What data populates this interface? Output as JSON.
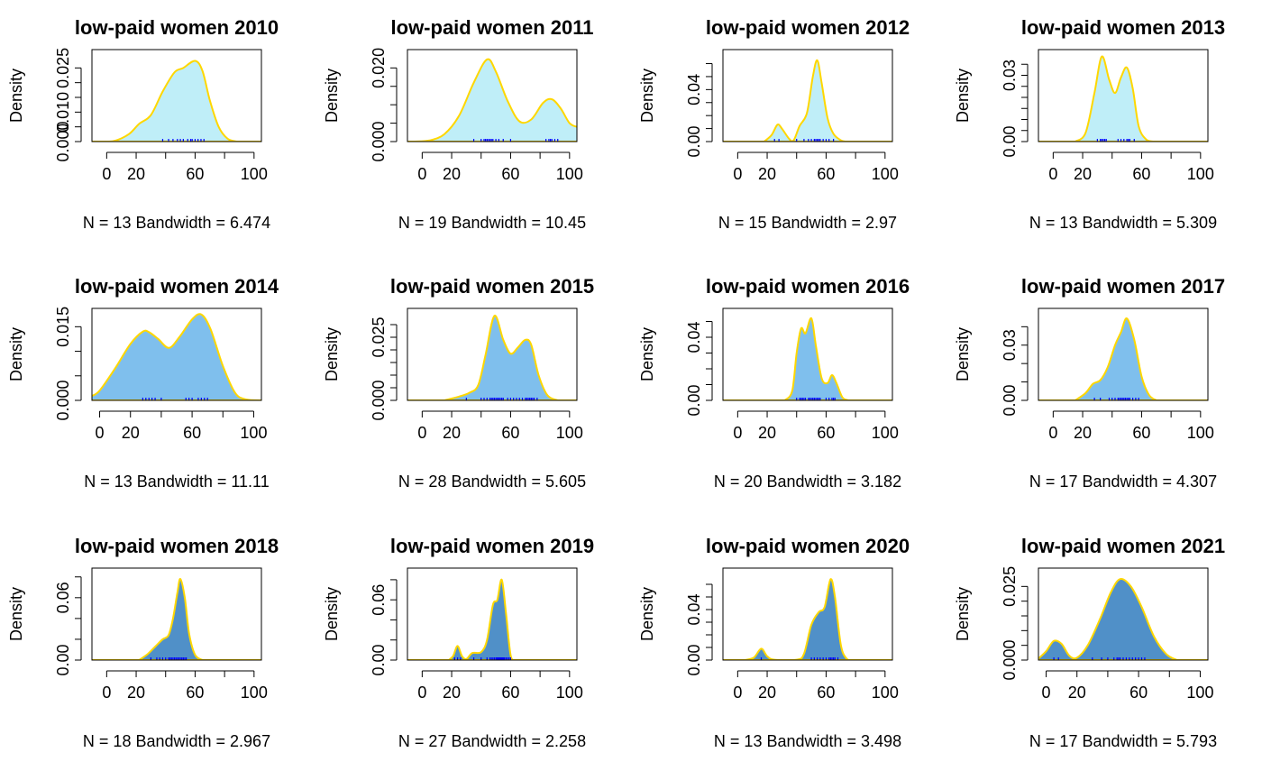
{
  "chart_data": [
    {
      "type": "density",
      "title": "low-paid women  2010",
      "ylabel": "Density",
      "xlabel": "N = 13   Bandwidth = 6.474",
      "fill": "#bfeef8",
      "xlim": [
        -10,
        105
      ],
      "ylim": [
        0,
        0.03
      ],
      "xticks": [
        0,
        20,
        60,
        100
      ],
      "yticks": [
        0,
        0.005,
        0.01,
        0.015,
        0.02,
        0.025
      ],
      "ytick_labels": [
        "0.000",
        "",
        "0.010",
        "",
        "",
        "0.025"
      ],
      "curve": [
        [
          -5,
          0
        ],
        [
          5,
          0.0002
        ],
        [
          15,
          0.0025
        ],
        [
          22,
          0.006
        ],
        [
          30,
          0.009
        ],
        [
          38,
          0.017
        ],
        [
          46,
          0.0235
        ],
        [
          52,
          0.025
        ],
        [
          60,
          0.0274
        ],
        [
          65,
          0.024
        ],
        [
          70,
          0.014
        ],
        [
          76,
          0.005
        ],
        [
          82,
          0.001
        ],
        [
          88,
          0
        ]
      ],
      "rug": [
        38,
        42,
        45,
        48,
        50,
        52,
        55,
        57,
        58,
        60,
        62,
        64,
        66
      ]
    },
    {
      "type": "density",
      "title": "low-paid women  2011",
      "ylabel": "Density",
      "xlabel": "N = 19   Bandwidth = 10.45",
      "fill": "#bfeef8",
      "xlim": [
        -10,
        105
      ],
      "ylim": [
        0,
        0.024
      ],
      "xticks": [
        0,
        20,
        60,
        100
      ],
      "yticks": [
        0,
        0.005,
        0.01,
        0.015,
        0.02
      ],
      "ytick_labels": [
        "0.000",
        "",
        "",
        "",
        "0.020"
      ],
      "curve": [
        [
          -5,
          0
        ],
        [
          5,
          0.0003
        ],
        [
          15,
          0.002
        ],
        [
          25,
          0.007
        ],
        [
          35,
          0.016
        ],
        [
          44,
          0.0223
        ],
        [
          50,
          0.019
        ],
        [
          58,
          0.011
        ],
        [
          66,
          0.0055
        ],
        [
          74,
          0.006
        ],
        [
          82,
          0.0105
        ],
        [
          88,
          0.0115
        ],
        [
          94,
          0.009
        ],
        [
          100,
          0.005
        ],
        [
          105,
          0.004
        ]
      ],
      "rug": [
        35,
        40,
        42,
        43,
        44,
        45,
        46,
        47,
        48,
        50,
        52,
        55,
        60,
        84,
        86,
        87,
        88,
        90,
        92
      ]
    },
    {
      "type": "density",
      "title": "low-paid women  2012",
      "ylabel": "Density",
      "xlabel": "N = 15   Bandwidth = 2.97",
      "fill": "#bfeef8",
      "xlim": [
        -10,
        105
      ],
      "ylim": [
        0,
        0.068
      ],
      "xticks": [
        0,
        20,
        60,
        100
      ],
      "yticks": [
        0,
        0.01,
        0.02,
        0.03,
        0.04,
        0.05,
        0.06
      ],
      "ytick_labels": [
        "0.00",
        "",
        "",
        "",
        "0.04",
        "",
        ""
      ],
      "curve": [
        [
          18,
          0
        ],
        [
          23,
          0.005
        ],
        [
          27,
          0.013
        ],
        [
          30,
          0.01
        ],
        [
          35,
          0.002
        ],
        [
          38,
          0.001
        ],
        [
          42,
          0.012
        ],
        [
          47,
          0.022
        ],
        [
          51,
          0.05
        ],
        [
          54,
          0.0625
        ],
        [
          57,
          0.045
        ],
        [
          61,
          0.018
        ],
        [
          65,
          0.006
        ],
        [
          70,
          0.001
        ],
        [
          73,
          0
        ]
      ],
      "rug": [
        25,
        28,
        40,
        45,
        48,
        50,
        52,
        53,
        54,
        55,
        56,
        58,
        60,
        62,
        65
      ]
    },
    {
      "type": "density",
      "title": "low-paid women  2013",
      "ylabel": "Density",
      "xlabel": "N = 13   Bandwidth = 5.309",
      "fill": "#bfeef8",
      "xlim": [
        -10,
        105
      ],
      "ylim": [
        0,
        0.04
      ],
      "xticks": [
        0,
        20,
        60,
        100
      ],
      "yticks": [
        0,
        0.005,
        0.01,
        0.015,
        0.02,
        0.025,
        0.03,
        0.035
      ],
      "ytick_labels": [
        "0.00",
        "",
        "",
        "",
        "",
        "",
        "0.03",
        ""
      ],
      "curve": [
        [
          15,
          0
        ],
        [
          22,
          0.004
        ],
        [
          28,
          0.022
        ],
        [
          33,
          0.0385
        ],
        [
          38,
          0.028
        ],
        [
          42,
          0.022
        ],
        [
          46,
          0.029
        ],
        [
          50,
          0.0335
        ],
        [
          54,
          0.024
        ],
        [
          58,
          0.007
        ],
        [
          63,
          0.001
        ],
        [
          68,
          0
        ]
      ],
      "rug": [
        30,
        32,
        33,
        34,
        35,
        36,
        44,
        46,
        48,
        50,
        51,
        52,
        55
      ]
    },
    {
      "type": "density",
      "title": "low-paid women  2014",
      "ylabel": "Density",
      "xlabel": "N = 13   Bandwidth = 11.11",
      "fill": "#7fbfed",
      "xlim": [
        -5,
        105
      ],
      "ylim": [
        0,
        0.018
      ],
      "xticks": [
        0,
        20,
        60,
        100
      ],
      "yticks": [
        0,
        0.005,
        0.01,
        0.015
      ],
      "ytick_labels": [
        "0.000",
        "",
        "",
        "0.015"
      ],
      "curve": [
        [
          -5,
          0.0009
        ],
        [
          0,
          0.002
        ],
        [
          10,
          0.0065
        ],
        [
          20,
          0.0115
        ],
        [
          28,
          0.014
        ],
        [
          32,
          0.0139
        ],
        [
          38,
          0.0125
        ],
        [
          45,
          0.0107
        ],
        [
          52,
          0.013
        ],
        [
          60,
          0.0165
        ],
        [
          66,
          0.0175
        ],
        [
          72,
          0.0145
        ],
        [
          80,
          0.007
        ],
        [
          88,
          0.0015
        ],
        [
          95,
          0.0002
        ],
        [
          105,
          0
        ]
      ],
      "rug": [
        28,
        30,
        32,
        34,
        36,
        40,
        56,
        58,
        60,
        64,
        66,
        68,
        70
      ]
    },
    {
      "type": "density",
      "title": "low-paid women  2015",
      "ylabel": "Density",
      "xlabel": "N = 28   Bandwidth = 5.605",
      "fill": "#7fbfed",
      "xlim": [
        -10,
        105
      ],
      "ylim": [
        0,
        0.035
      ],
      "xticks": [
        0,
        20,
        60,
        100
      ],
      "yticks": [
        0,
        0.005,
        0.01,
        0.015,
        0.02,
        0.025,
        0.03
      ],
      "ytick_labels": [
        "0.000",
        "",
        "",
        "",
        "",
        "0.025",
        ""
      ],
      "curve": [
        [
          15,
          0
        ],
        [
          25,
          0.0015
        ],
        [
          32,
          0.003
        ],
        [
          38,
          0.006
        ],
        [
          43,
          0.018
        ],
        [
          49,
          0.0335
        ],
        [
          55,
          0.024
        ],
        [
          60,
          0.0185
        ],
        [
          65,
          0.021
        ],
        [
          70,
          0.024
        ],
        [
          74,
          0.022
        ],
        [
          79,
          0.01
        ],
        [
          85,
          0.002
        ],
        [
          92,
          0
        ]
      ],
      "rug": [
        30,
        40,
        42,
        44,
        46,
        47,
        48,
        49,
        50,
        51,
        52,
        53,
        54,
        55,
        58,
        60,
        62,
        64,
        66,
        68,
        70,
        71,
        72,
        73,
        74,
        75,
        76,
        78
      ]
    },
    {
      "type": "density",
      "title": "low-paid women  2016",
      "ylabel": "Density",
      "xlabel": "N = 20   Bandwidth = 3.182",
      "fill": "#7fbfed",
      "xlim": [
        -10,
        105
      ],
      "ylim": [
        0,
        0.056
      ],
      "xticks": [
        0,
        20,
        60,
        100
      ],
      "yticks": [
        0,
        0.01,
        0.02,
        0.03,
        0.04,
        0.05
      ],
      "ytick_labels": [
        "0.00",
        "",
        "",
        "",
        "0.04",
        ""
      ],
      "curve": [
        [
          32,
          0
        ],
        [
          37,
          0.006
        ],
        [
          40,
          0.03
        ],
        [
          43,
          0.0455
        ],
        [
          46,
          0.0425
        ],
        [
          50,
          0.052
        ],
        [
          53,
          0.035
        ],
        [
          57,
          0.014
        ],
        [
          61,
          0.011
        ],
        [
          64,
          0.016
        ],
        [
          67,
          0.011
        ],
        [
          71,
          0.002
        ],
        [
          75,
          0
        ]
      ],
      "rug": [
        40,
        42,
        43,
        44,
        45,
        46,
        48,
        49,
        50,
        51,
        52,
        53,
        54,
        55,
        56,
        60,
        62,
        64,
        65,
        66
      ]
    },
    {
      "type": "density",
      "title": "low-paid women  2017",
      "ylabel": "Density",
      "xlabel": "N = 17   Bandwidth = 4.307",
      "fill": "#7fbfed",
      "xlim": [
        -10,
        105
      ],
      "ylim": [
        0,
        0.048
      ],
      "xticks": [
        0,
        20,
        60,
        100
      ],
      "yticks": [
        0,
        0.01,
        0.02,
        0.03,
        0.04
      ],
      "ytick_labels": [
        "0.00",
        "",
        "",
        "0.03",
        ""
      ],
      "curve": [
        [
          15,
          0
        ],
        [
          22,
          0.004
        ],
        [
          27,
          0.009
        ],
        [
          32,
          0.011
        ],
        [
          37,
          0.018
        ],
        [
          42,
          0.03
        ],
        [
          46,
          0.037
        ],
        [
          50,
          0.0445
        ],
        [
          55,
          0.033
        ],
        [
          60,
          0.013
        ],
        [
          65,
          0.003
        ],
        [
          70,
          0
        ]
      ],
      "rug": [
        28,
        32,
        38,
        40,
        42,
        44,
        45,
        46,
        47,
        48,
        49,
        50,
        51,
        52,
        54,
        56,
        58
      ]
    },
    {
      "type": "density",
      "title": "low-paid women  2018",
      "ylabel": "Density",
      "xlabel": "N = 18   Bandwidth = 2.967",
      "fill": "#5090c8",
      "xlim": [
        -10,
        105
      ],
      "ylim": [
        0,
        0.085
      ],
      "xticks": [
        0,
        20,
        60,
        100
      ],
      "yticks": [
        0,
        0.02,
        0.04,
        0.06,
        0.08
      ],
      "ytick_labels": [
        "0.00",
        "",
        "",
        "0.06",
        ""
      ],
      "curve": [
        [
          22,
          0
        ],
        [
          28,
          0.006
        ],
        [
          33,
          0.013
        ],
        [
          38,
          0.02
        ],
        [
          42,
          0.024
        ],
        [
          45,
          0.04
        ],
        [
          48,
          0.065
        ],
        [
          50,
          0.078
        ],
        [
          53,
          0.06
        ],
        [
          56,
          0.025
        ],
        [
          60,
          0.005
        ],
        [
          65,
          0
        ]
      ],
      "rug": [
        30,
        34,
        36,
        38,
        40,
        42,
        43,
        44,
        45,
        46,
        47,
        48,
        49,
        50,
        51,
        52,
        53,
        54
      ]
    },
    {
      "type": "density",
      "title": "low-paid women  2019",
      "ylabel": "Density",
      "xlabel": "N = 27   Bandwidth = 2.258",
      "fill": "#5090c8",
      "xlim": [
        -10,
        105
      ],
      "ylim": [
        0,
        0.088
      ],
      "xticks": [
        0,
        20,
        60,
        100
      ],
      "yticks": [
        0,
        0.02,
        0.04,
        0.06,
        0.08
      ],
      "ytick_labels": [
        "0.00",
        "",
        "",
        "0.06",
        ""
      ],
      "curve": [
        [
          18,
          0
        ],
        [
          21,
          0.004
        ],
        [
          24,
          0.014
        ],
        [
          27,
          0.004
        ],
        [
          30,
          0.001
        ],
        [
          34,
          0.007
        ],
        [
          40,
          0.008
        ],
        [
          44,
          0.02
        ],
        [
          48,
          0.055
        ],
        [
          51,
          0.06
        ],
        [
          54,
          0.08
        ],
        [
          57,
          0.045
        ],
        [
          60,
          0.005
        ],
        [
          63,
          0
        ]
      ],
      "rug": [
        22,
        24,
        26,
        35,
        40,
        44,
        46,
        47,
        48,
        49,
        50,
        50.5,
        51,
        51.5,
        52,
        52.5,
        53,
        53.5,
        54,
        54.5,
        55,
        55.5,
        56,
        57,
        58,
        59,
        60
      ]
    },
    {
      "type": "density",
      "title": "low-paid women  2020",
      "ylabel": "Density",
      "xlabel": "N = 13   Bandwidth = 3.498",
      "fill": "#5090c8",
      "xlim": [
        -10,
        105
      ],
      "ylim": [
        0,
        0.07
      ],
      "xticks": [
        0,
        20,
        60,
        100
      ],
      "yticks": [
        0,
        0.01,
        0.02,
        0.03,
        0.04,
        0.05,
        0.06
      ],
      "ytick_labels": [
        "0.00",
        "",
        "",
        "",
        "0.04",
        "",
        ""
      ],
      "curve": [
        [
          5,
          0
        ],
        [
          11,
          0.002
        ],
        [
          16,
          0.009
        ],
        [
          20,
          0.003
        ],
        [
          25,
          0.0003
        ],
        [
          40,
          0.0003
        ],
        [
          45,
          0.005
        ],
        [
          50,
          0.028
        ],
        [
          55,
          0.038
        ],
        [
          59,
          0.042
        ],
        [
          63,
          0.064
        ],
        [
          66,
          0.05
        ],
        [
          70,
          0.012
        ],
        [
          74,
          0.001
        ],
        [
          78,
          0
        ]
      ],
      "rug": [
        16,
        50,
        52,
        54,
        56,
        58,
        60,
        62,
        63,
        64,
        65,
        66,
        68
      ]
    },
    {
      "type": "density",
      "title": "low-paid women  2021",
      "ylabel": "Density",
      "xlabel": "N = 17   Bandwidth = 5.793",
      "fill": "#5090c8",
      "xlim": [
        -5,
        105
      ],
      "ylim": [
        0,
        0.03
      ],
      "xticks": [
        0,
        20,
        60,
        100
      ],
      "yticks": [
        0,
        0.005,
        0.01,
        0.015,
        0.02,
        0.025
      ],
      "ytick_labels": [
        "0.000",
        "",
        "",
        "",
        "",
        "0.025"
      ],
      "curve": [
        [
          -5,
          0.0005
        ],
        [
          0,
          0.003
        ],
        [
          5,
          0.0065
        ],
        [
          10,
          0.0055
        ],
        [
          15,
          0.0015
        ],
        [
          20,
          0.0008
        ],
        [
          27,
          0.005
        ],
        [
          35,
          0.014
        ],
        [
          42,
          0.023
        ],
        [
          48,
          0.0275
        ],
        [
          55,
          0.025
        ],
        [
          62,
          0.018
        ],
        [
          70,
          0.008
        ],
        [
          78,
          0.002
        ],
        [
          85,
          0
        ]
      ],
      "rug": [
        5,
        8,
        30,
        36,
        40,
        44,
        46,
        47,
        48,
        50,
        52,
        54,
        56,
        58,
        60,
        62,
        64
      ]
    }
  ]
}
